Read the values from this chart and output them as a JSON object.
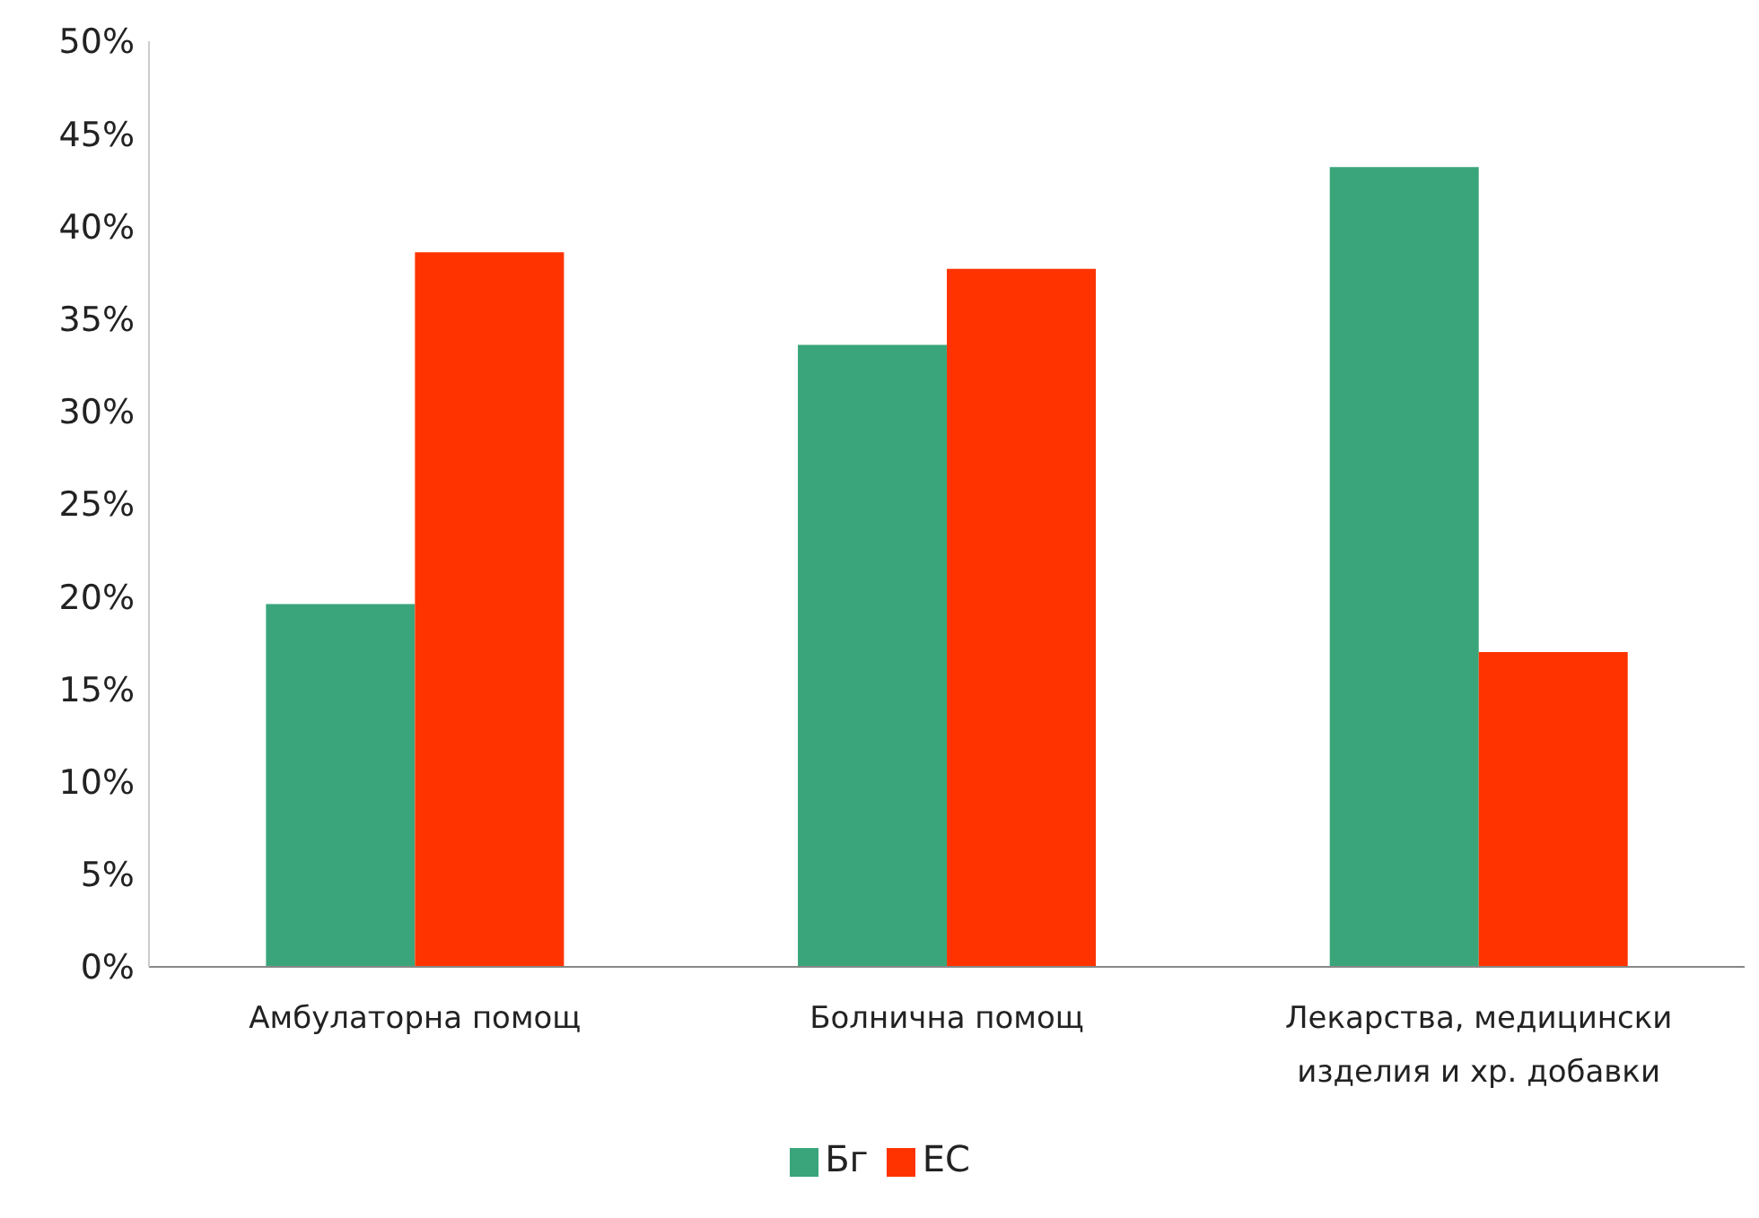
{
  "chart_data": {
    "type": "bar",
    "categories": [
      "Амбулаторна помощ",
      "Болнична помощ",
      "Лекарства, медицински изделия и хр. добавки"
    ],
    "series": [
      {
        "name": "Бг",
        "color": "#3aa57a",
        "values": [
          19.6,
          33.6,
          43.2
        ]
      },
      {
        "name": "ЕС",
        "color": "#ff3300",
        "values": [
          38.6,
          37.7,
          17.0
        ]
      }
    ],
    "ylim": [
      0,
      50
    ],
    "yticks": [
      {
        "value": 0,
        "label": "0%"
      },
      {
        "value": 5,
        "label": "5%"
      },
      {
        "value": 10,
        "label": "10%"
      },
      {
        "value": 15,
        "label": "15%"
      },
      {
        "value": 20,
        "label": "20%"
      },
      {
        "value": 25,
        "label": "25%"
      },
      {
        "value": 30,
        "label": "30%"
      },
      {
        "value": 35,
        "label": "35%"
      },
      {
        "value": 40,
        "label": "40%"
      },
      {
        "value": 45,
        "label": "45%"
      },
      {
        "value": 50,
        "label": "50%"
      }
    ],
    "grid": false,
    "legend": "bottom"
  }
}
